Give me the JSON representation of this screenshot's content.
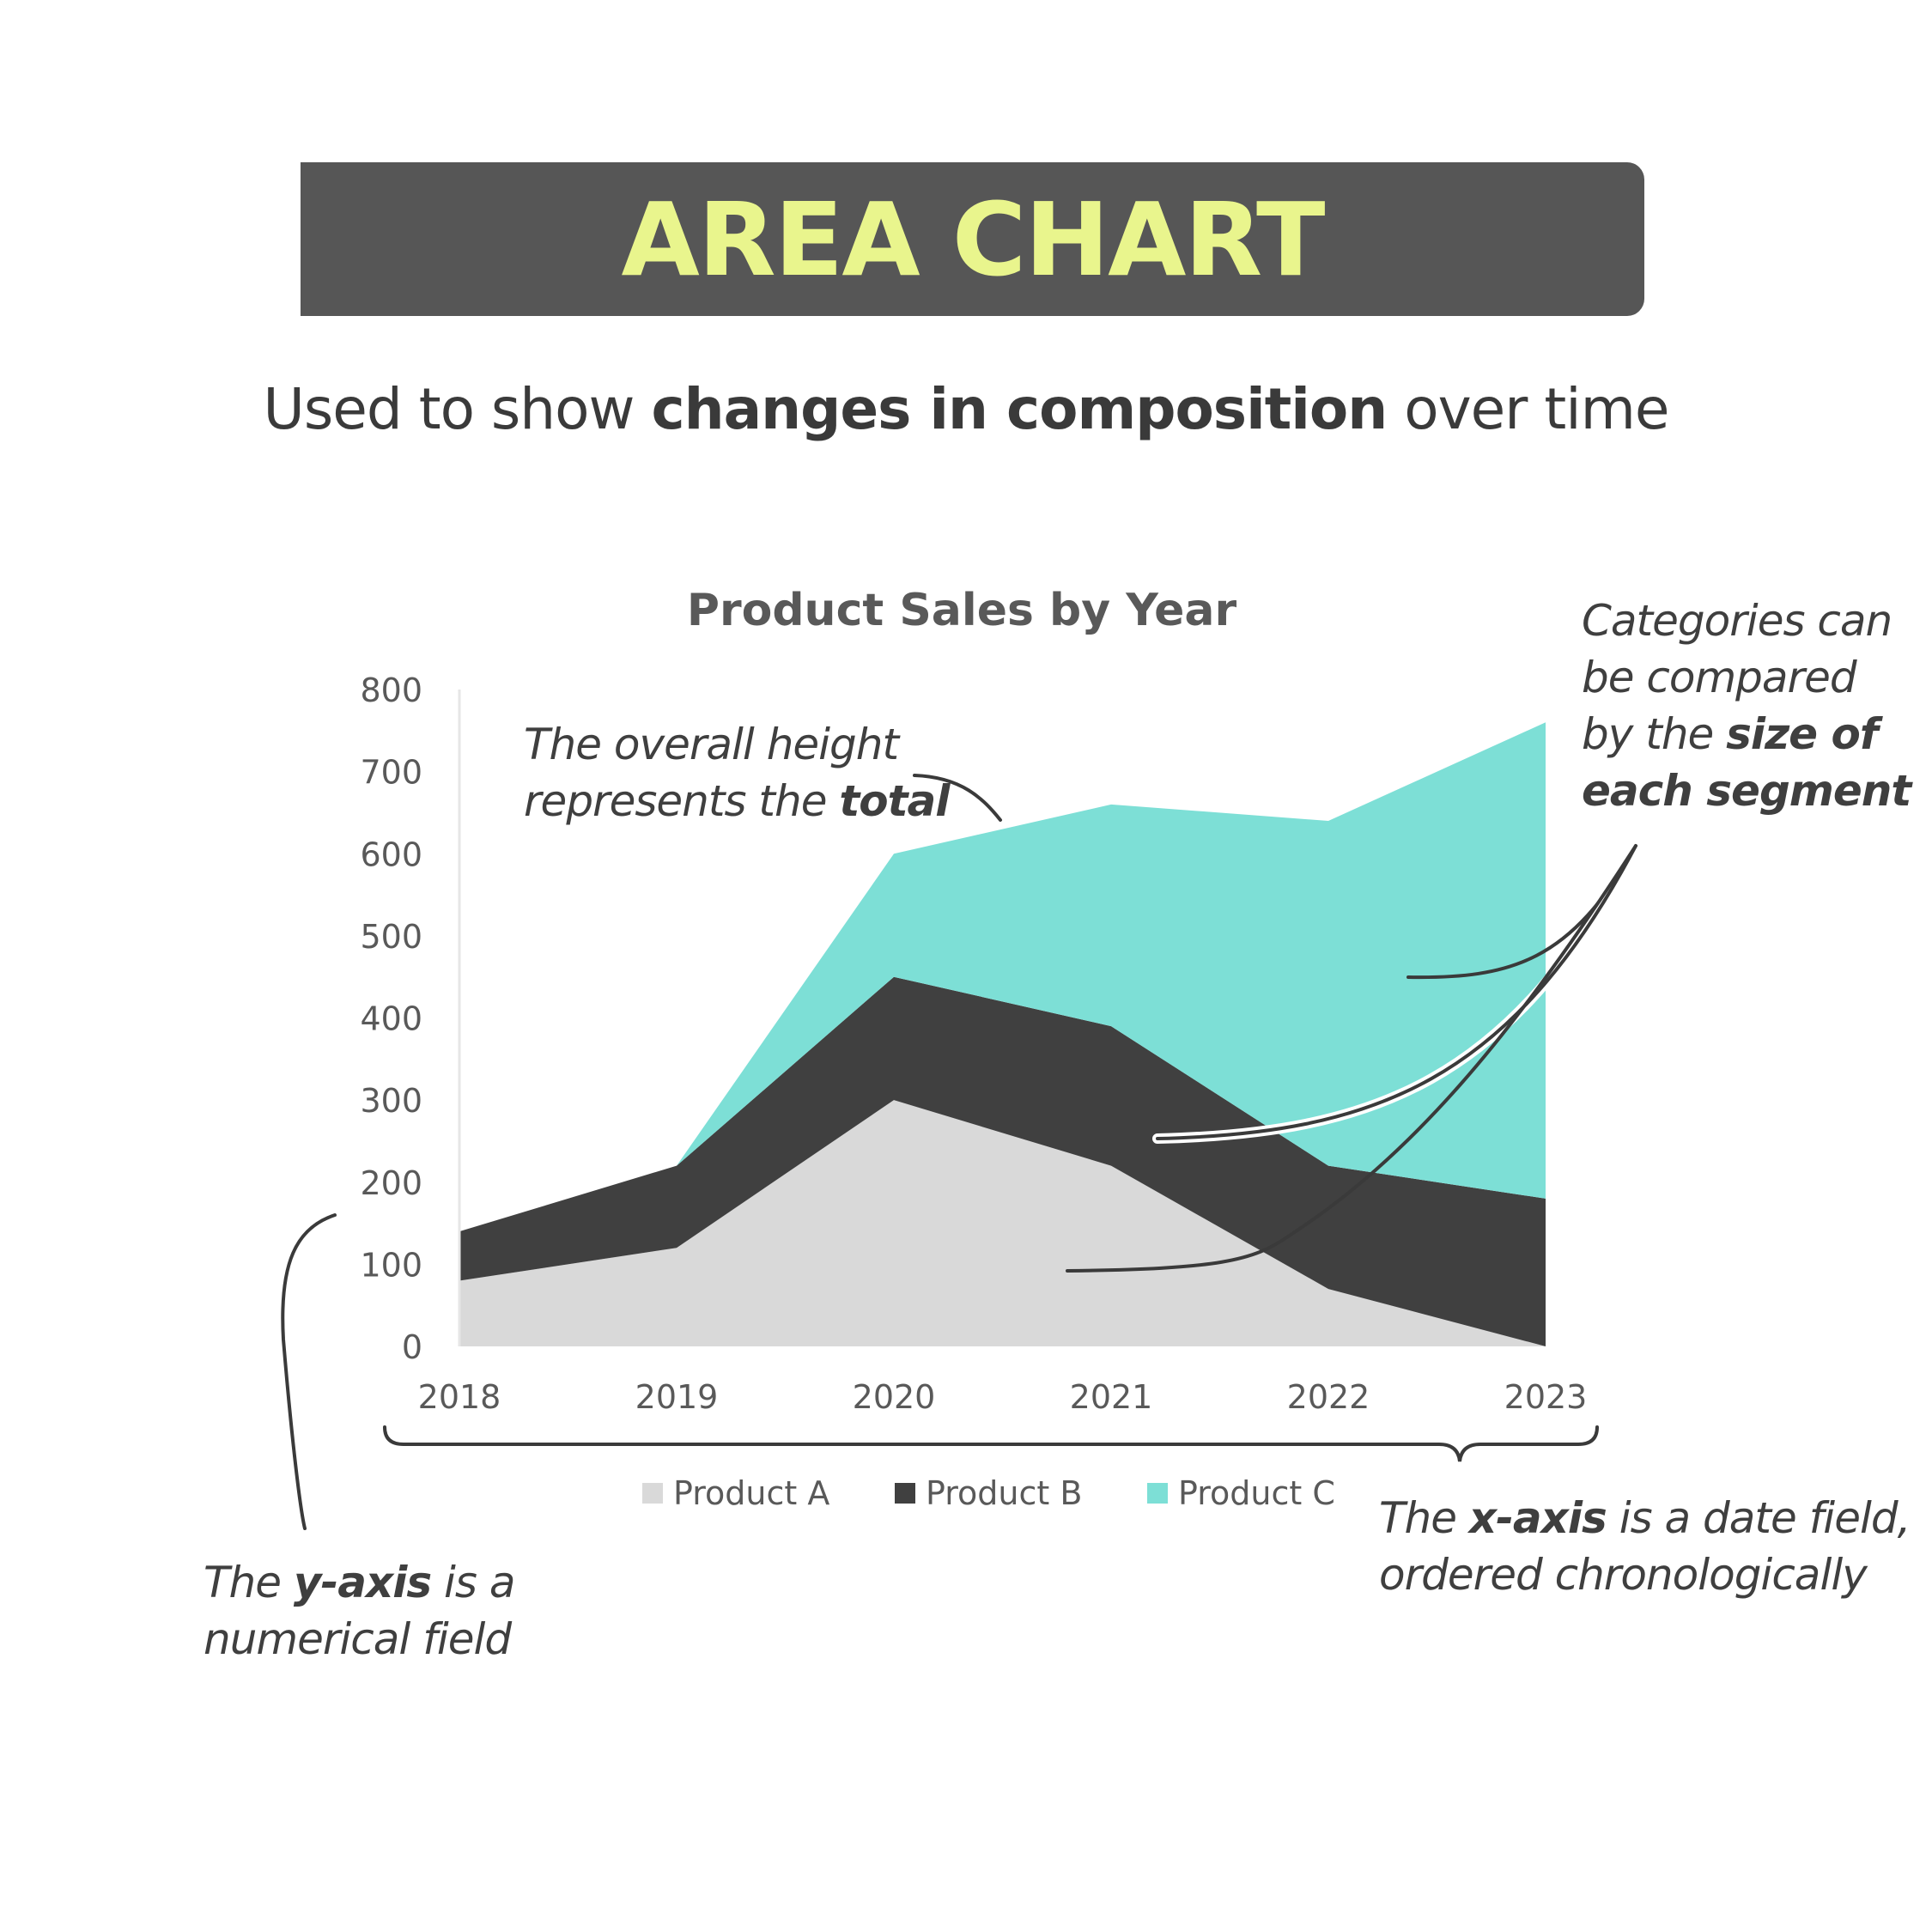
{
  "banner": {
    "title": "AREA CHART"
  },
  "subtitle": {
    "prefix": "Used to show ",
    "emphasis": "changes in composition",
    "suffix": " over time"
  },
  "annotations": {
    "total": {
      "line1": "The overall height",
      "line2_prefix": "represents the ",
      "line2_bold": "total"
    },
    "segments": {
      "line1": "Categories can",
      "line2": "be compared",
      "line3_prefix": "by the ",
      "line3_bold": "size of",
      "line4_bold": "each segment"
    },
    "yaxis": {
      "prefix": "The ",
      "bold": "y-axis",
      "suffix": " is a",
      "line2": "numerical field"
    },
    "xaxis": {
      "prefix": "The ",
      "bold": "x-axis",
      "suffix": " is a date field,",
      "line2": "ordered chronologically"
    }
  },
  "colors": {
    "product_a": "#d9d9d9",
    "product_b": "#404040",
    "product_c": "#7ddfd6",
    "banner_bg": "#565656",
    "banner_text": "#e9f58d"
  },
  "chart_data": {
    "type": "area",
    "stacked": true,
    "title": "Product Sales by Year",
    "x": [
      "2018",
      "2019",
      "2020",
      "2021",
      "2022",
      "2023"
    ],
    "ylim": [
      0,
      800
    ],
    "yticks": [
      0,
      100,
      200,
      300,
      400,
      500,
      600,
      700,
      800
    ],
    "grid": false,
    "legend": "bottom",
    "series": [
      {
        "name": "Product A",
        "values": [
          80,
          120,
          300,
          220,
          70,
          0
        ]
      },
      {
        "name": "Product B",
        "values": [
          60,
          100,
          150,
          170,
          150,
          180
        ]
      },
      {
        "name": "Product C",
        "values": [
          0,
          0,
          150,
          270,
          420,
          580
        ]
      }
    ]
  }
}
